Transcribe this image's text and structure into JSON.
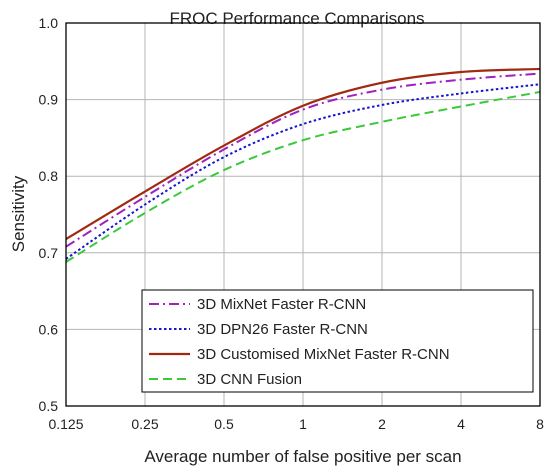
{
  "chart_data": {
    "type": "line",
    "title": "FROC Performance Comparisons",
    "xlabel": "Average number of false positive per scan",
    "ylabel": "Sensitivity",
    "x_scale": "log2",
    "xlim": [
      0.125,
      8
    ],
    "ylim": [
      0.5,
      1.0
    ],
    "x_ticks": [
      0.125,
      0.25,
      0.5,
      1,
      2,
      4,
      8
    ],
    "x_tick_labels": [
      "0.125",
      "0.25",
      "0.5",
      "1",
      "2",
      "4",
      "8"
    ],
    "y_ticks": [
      0.5,
      0.6,
      0.7,
      0.8,
      0.9,
      1.0
    ],
    "y_tick_labels": [
      "0.5",
      "0.6",
      "0.7",
      "0.8",
      "0.9",
      "1.0"
    ],
    "grid": true,
    "legend_position": "lower-right",
    "x": [
      0.125,
      0.25,
      0.5,
      1,
      2,
      4,
      8
    ],
    "series": [
      {
        "name": "3D MixNet Faster R-CNN",
        "values": [
          0.708,
          0.773,
          0.835,
          0.887,
          0.913,
          0.926,
          0.934
        ],
        "color": "#a020c0",
        "dash": "dashdot"
      },
      {
        "name": "3D DPN26 Faster R-CNN",
        "values": [
          0.692,
          0.763,
          0.825,
          0.868,
          0.893,
          0.908,
          0.92
        ],
        "color": "#1515d0",
        "dash": "dot"
      },
      {
        "name": "3D Customised MixNet Faster R-CNN",
        "values": [
          0.718,
          0.78,
          0.84,
          0.892,
          0.922,
          0.936,
          0.94
        ],
        "color": "#a02a10",
        "dash": "solid"
      },
      {
        "name": "3D CNN Fusion",
        "values": [
          0.688,
          0.752,
          0.808,
          0.847,
          0.871,
          0.891,
          0.91
        ],
        "color": "#3cc83c",
        "dash": "dash"
      }
    ]
  }
}
